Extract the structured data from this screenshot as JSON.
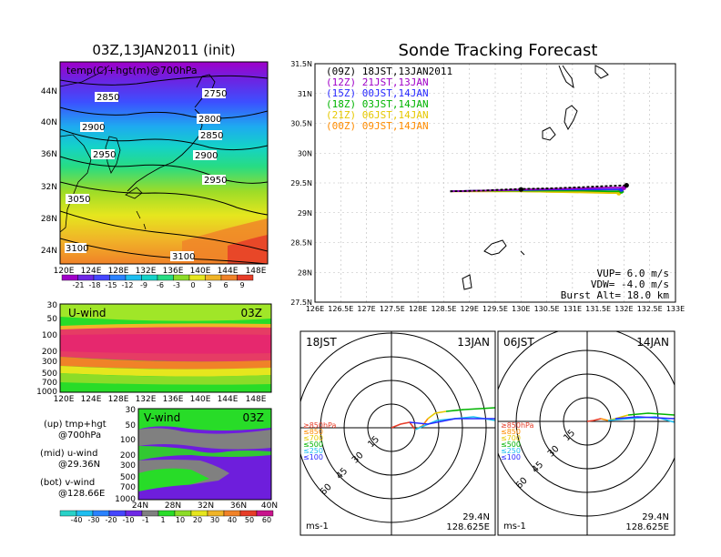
{
  "left_panel": {
    "title": "03Z,13JAN2011 (init)",
    "map_label": "temp(C)+hgt(m)@700hPa",
    "lat_labels": [
      "44N",
      "40N",
      "36N",
      "32N",
      "28N",
      "24N"
    ],
    "lon_labels": [
      "120E",
      "124E",
      "128E",
      "132E",
      "136E",
      "140E",
      "144E",
      "148E"
    ],
    "contour_labels": [
      "2850",
      "2750",
      "2900",
      "2800",
      "2850",
      "2950",
      "2900",
      "2950",
      "3050",
      "3100",
      "3100"
    ],
    "colorbar_labels": [
      "-21",
      "-18",
      "-15",
      "-12",
      "-9",
      "-6",
      "-3",
      "0",
      "3",
      "6",
      "9"
    ],
    "colorbar_colors": [
      "#a000c8",
      "#6e28e6",
      "#4646ff",
      "#2a82ff",
      "#1ebef0",
      "#14d2c8",
      "#28dc82",
      "#8cdc28",
      "#e6e61e",
      "#f0b428",
      "#f08228",
      "#e63c28"
    ]
  },
  "uwind": {
    "label": "U-wind",
    "time": "03Z",
    "p_labels": [
      "30",
      "50",
      "100",
      "200",
      "300",
      "500",
      "700",
      "1000"
    ],
    "lon_labels": [
      "120E",
      "124E",
      "128E",
      "132E",
      "136E",
      "140E",
      "144E",
      "148E"
    ]
  },
  "vwind": {
    "label": "V-wind",
    "time": "03Z",
    "p_labels": [
      "30",
      "50",
      "100",
      "200",
      "300",
      "500",
      "700",
      "1000"
    ],
    "lat_labels": [
      "24N",
      "28N",
      "32N",
      "36N",
      "40N"
    ],
    "colorbar_labels": [
      "-40",
      "-30",
      "-20",
      "-10",
      "-1",
      "1",
      "10",
      "20",
      "30",
      "40",
      "50",
      "60"
    ]
  },
  "legend_text": {
    "up": "(up) tmp+hgt",
    "up2": "@700hPa",
    "mid": "(mid) u-wind",
    "mid2": "@29.36N",
    "bot": "(bot) v-wind",
    "bot2": "@128.66E"
  },
  "chart_data": {
    "type": "line",
    "title": "Sonde Tracking Forecast",
    "xlim": [
      126,
      133
    ],
    "ylim": [
      27.5,
      31.5
    ],
    "x_ticks": [
      "126E",
      "126.5E",
      "127E",
      "127.5E",
      "128E",
      "128.5E",
      "129E",
      "129.5E",
      "130E",
      "130.5E",
      "131E",
      "131.5E",
      "132E",
      "132.5E",
      "133E"
    ],
    "y_ticks": [
      "27.5N",
      "28N",
      "28.5N",
      "29N",
      "29.5N",
      "30N",
      "30.5N",
      "31N",
      "31.5N"
    ],
    "grid": true,
    "legend_placement": "top-left",
    "series": [
      {
        "name": "(09Z)  18JST,13JAN2011",
        "color": "#000000",
        "dash": true,
        "x": [
          128.625,
          129.2,
          129.7,
          130.0,
          130.6,
          131.2,
          131.7,
          132.05
        ],
        "y": [
          29.36,
          29.37,
          29.39,
          29.4,
          29.41,
          29.43,
          29.45,
          29.46
        ]
      },
      {
        "name": "(12Z)  21JST,13JAN",
        "color": "#a000c8",
        "dash": false,
        "x": [
          128.625,
          129.2,
          129.7,
          130.0,
          130.6,
          131.2,
          131.7,
          132.0
        ],
        "y": [
          29.36,
          29.37,
          29.38,
          29.39,
          29.4,
          29.41,
          29.42,
          29.42
        ]
      },
      {
        "name": "(15Z)  00JST,14JAN",
        "color": "#2828ff",
        "dash": false,
        "x": [
          128.625,
          129.2,
          129.7,
          130.0,
          130.6,
          131.2,
          131.7,
          131.95
        ],
        "y": [
          29.36,
          29.37,
          29.38,
          29.38,
          29.39,
          29.39,
          29.39,
          29.39
        ]
      },
      {
        "name": "(18Z)  03JST,14JAN",
        "color": "#00b400",
        "dash": false,
        "x": [
          128.625,
          129.2,
          129.7,
          130.0,
          130.6,
          131.2,
          131.7,
          131.95
        ],
        "y": [
          29.36,
          29.37,
          29.37,
          29.37,
          29.37,
          29.37,
          29.36,
          29.36
        ]
      },
      {
        "name": "(21Z)  06JST,14JAN",
        "color": "#e6c800",
        "dash": false,
        "x": [
          128.625,
          129.2,
          129.7,
          130.0,
          130.6,
          131.2,
          131.7,
          131.9
        ],
        "y": [
          29.36,
          29.36,
          29.36,
          29.36,
          29.35,
          29.34,
          29.33,
          29.33
        ]
      },
      {
        "name": "(00Z)  09JST,14JAN",
        "color": "#ff8c00",
        "dash": false,
        "x": [
          128.625,
          129.2,
          129.7,
          130.0,
          130.6,
          131.2,
          131.7,
          131.9
        ],
        "y": [
          29.36,
          29.36,
          29.36,
          29.36,
          29.35,
          29.35,
          29.34,
          29.34
        ]
      }
    ],
    "annotations": [
      "VUP=  6.0  m/s",
      "VDW= -4.0  m/s",
      "Burst Alt=  18.0  km"
    ]
  },
  "hodographs": [
    {
      "left_label": "18JST",
      "right_label": "13JAN",
      "lat": "29.4N",
      "lon": "128.625E",
      "unit": "ms-1",
      "ring_labels": [
        "15",
        "30",
        "45",
        "60"
      ],
      "levels": [
        {
          "label": "≥850hPa",
          "color": "#e63c28"
        },
        {
          "label": "≤850",
          "color": "#ff8c00"
        },
        {
          "label": "≤700",
          "color": "#e6c800"
        },
        {
          "label": "≤500",
          "color": "#00b400"
        },
        {
          "label": "≤250",
          "color": "#1ebef0"
        },
        {
          "label": "≤100",
          "color": "#2828ff"
        }
      ]
    },
    {
      "left_label": "06JST",
      "right_label": "14JAN",
      "lat": "29.4N",
      "lon": "128.625E",
      "unit": "ms-1",
      "ring_labels": [
        "15",
        "30",
        "45",
        "60"
      ],
      "levels": [
        {
          "label": "≥850hPa",
          "color": "#e63c28"
        },
        {
          "label": "≤850",
          "color": "#ff8c00"
        },
        {
          "label": "≤700",
          "color": "#e6c800"
        },
        {
          "label": "≤500",
          "color": "#00b400"
        },
        {
          "label": "≤250",
          "color": "#1ebef0"
        },
        {
          "label": "≤100",
          "color": "#2828ff"
        }
      ]
    }
  ]
}
